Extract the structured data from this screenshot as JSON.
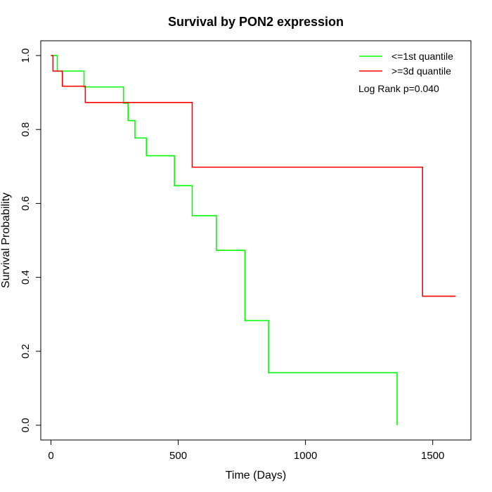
{
  "chart_data": {
    "type": "line",
    "title": "Survival by PON2 expression",
    "xlabel": "Time (Days)",
    "ylabel": "Survival Probability",
    "xlim": [
      -40,
      1650
    ],
    "ylim": [
      -0.04,
      1.04
    ],
    "x_ticks": [
      0,
      500,
      1000,
      1500
    ],
    "y_ticks": [
      0.0,
      0.2,
      0.4,
      0.6,
      0.8,
      1.0
    ],
    "x_tick_labels": [
      "0",
      "500",
      "1000",
      "1500"
    ],
    "y_tick_labels": [
      "0.0",
      "0.2",
      "0.4",
      "0.6",
      "0.8",
      "1.0"
    ],
    "grid": false,
    "legend_position": "top-right",
    "annotation": "Log Rank p=0.040",
    "series": [
      {
        "name": "<=1st quantile",
        "color": "#00ff00",
        "step": true,
        "x": [
          0,
          25,
          130,
          285,
          303,
          330,
          375,
          485,
          555,
          650,
          762,
          855,
          1360
        ],
        "y": [
          1.0,
          0.958,
          0.915,
          0.871,
          0.824,
          0.777,
          0.729,
          0.648,
          0.567,
          0.473,
          0.283,
          0.142,
          0.0
        ]
      },
      {
        "name": ">=3d quantile",
        "color": "#ff0000",
        "step": true,
        "x": [
          0,
          8,
          45,
          135,
          555,
          1460,
          1590
        ],
        "y": [
          1.0,
          0.958,
          0.917,
          0.873,
          0.698,
          0.349,
          0.349
        ]
      }
    ]
  }
}
